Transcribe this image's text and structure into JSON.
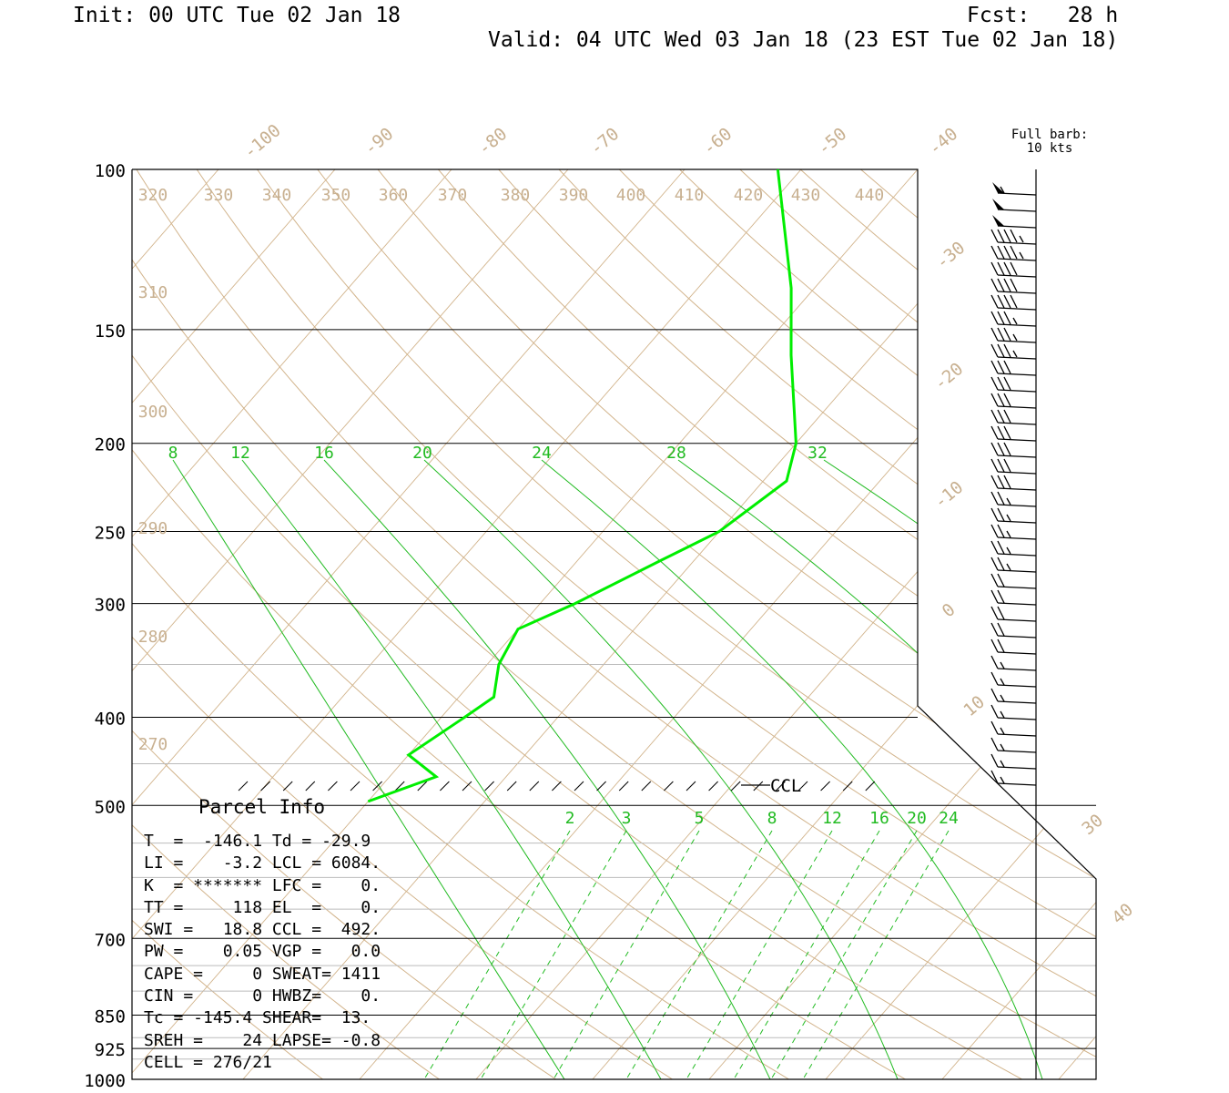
{
  "header": {
    "init": "Init: 00 UTC Tue 02 Jan 18",
    "fcst": "Fcst:   28 h",
    "valid": "Valid: 04 UTC Wed 03 Jan 18 (23 EST Tue 02 Jan 18)"
  },
  "colors": {
    "sounding": "#00ee00",
    "mixing_ratio": "#22bb22",
    "adiabat": "#d2b48c",
    "isobar": "#000000",
    "isotherm_label": "#c8b090"
  },
  "barb_legend": {
    "line1": "Full barb:",
    "line2": "10 kts"
  },
  "ccl_label": "CCL",
  "chart_data": {
    "type": "line",
    "title": "",
    "pressure_levels": [
      "100",
      "150",
      "200",
      "250",
      "300",
      "400",
      "500",
      "700",
      "850",
      "925",
      "1000"
    ],
    "isotherm_labels": [
      "-100",
      "-90",
      "-80",
      "-70",
      "-60",
      "-50",
      "-40",
      "-30",
      "-20",
      "-10",
      "0",
      "10",
      "30",
      "40"
    ],
    "theta_labels": [
      "320",
      "330",
      "340",
      "350",
      "360",
      "370",
      "380",
      "390",
      "400",
      "410",
      "420",
      "430",
      "440",
      "310",
      "300",
      "290",
      "280",
      "270"
    ],
    "mixing_ratio_labels_upper": [
      "8",
      "12",
      "16",
      "20",
      "24",
      "28",
      "32"
    ],
    "mixing_ratio_labels_lower": [
      "2",
      "3",
      "5",
      "8",
      "12",
      "16",
      "20",
      "24"
    ],
    "series": [
      {
        "kind": "dewpoint",
        "points": [
          {
            "p": 100,
            "t": -42
          },
          {
            "p": 135,
            "t": -32
          },
          {
            "p": 160,
            "t": -27
          },
          {
            "p": 200,
            "t": -20
          },
          {
            "p": 220,
            "t": -18
          },
          {
            "p": 250,
            "t": -20
          },
          {
            "p": 270,
            "t": -23
          },
          {
            "p": 300,
            "t": -27
          },
          {
            "p": 320,
            "t": -30
          },
          {
            "p": 350,
            "t": -29
          },
          {
            "p": 380,
            "t": -27
          },
          {
            "p": 400,
            "t": -28
          },
          {
            "p": 440,
            "t": -30
          },
          {
            "p": 465,
            "t": -26
          },
          {
            "p": 495,
            "t": -30
          }
        ]
      }
    ],
    "wind_barbs_kts": [
      55,
      50,
      50,
      45,
      45,
      40,
      40,
      40,
      35,
      35,
      35,
      30,
      30,
      30,
      30,
      30,
      30,
      30,
      30,
      25,
      25,
      25,
      25,
      25,
      20,
      20,
      20,
      20,
      20,
      15,
      15,
      15,
      15,
      15,
      15,
      15,
      15
    ]
  },
  "parcel_info": {
    "title": "Parcel Info",
    "rows": [
      "T  =  -146.1 Td = -29.9",
      "LI =    -3.2 LCL = 6084.",
      "K  = ******* LFC =    0.",
      "TT =     118 EL  =    0.",
      "SWI =   18.8 CCL =  492.",
      "PW =    0.05 VGP =   0.0",
      "CAPE =     0 SWEAT= 1411",
      "CIN =      0 HWBZ=    0.",
      "Tc = -145.4 SHEAR=  13.",
      "SREH =    24 LAPSE= -0.8",
      "CELL = 276/21"
    ]
  }
}
